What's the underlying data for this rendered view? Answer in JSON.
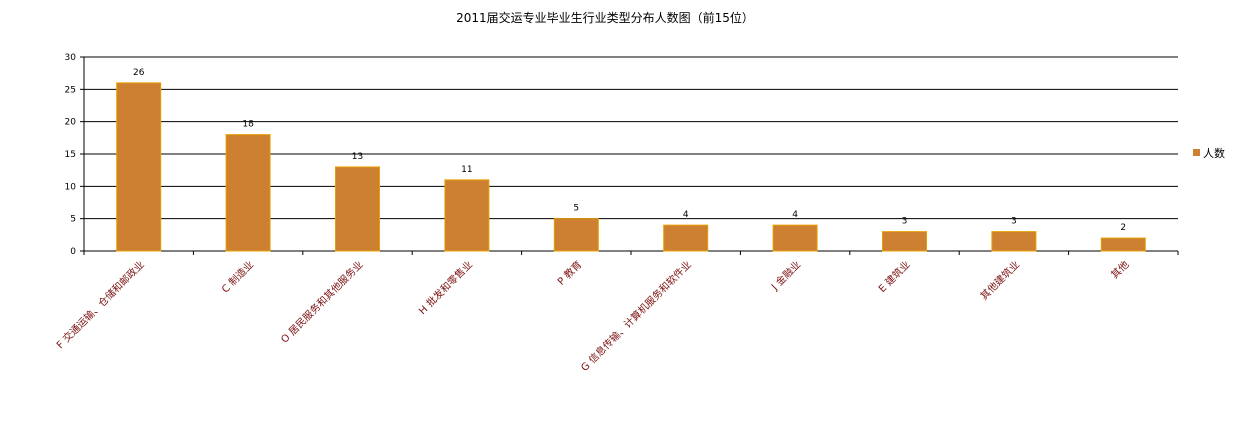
{
  "chart_data": {
    "type": "bar",
    "title": "2011届交运专业毕业生行业类型分布人数图（前15位）",
    "categories": [
      "F 交通运输、仓储和邮政业",
      "C 制造业",
      "O 居民服务和其他服务业",
      "H 批发和零售业",
      "P 教育",
      "G 信息传输、计算机服务和软件业",
      "J 金融业",
      "E 建筑业",
      "其他建筑业",
      "其他"
    ],
    "series": [
      {
        "name": "人数",
        "values": [
          26,
          18,
          13,
          11,
          5,
          4,
          4,
          3,
          3,
          2
        ]
      }
    ],
    "ylim": [
      0,
      30
    ],
    "yticks": [
      0,
      5,
      10,
      15,
      20,
      25,
      30
    ],
    "grid": true,
    "legend_position": "right",
    "colors": {
      "bar": "#CD7F32",
      "bar_edge": "#E8A000",
      "grid": "#000000"
    }
  }
}
